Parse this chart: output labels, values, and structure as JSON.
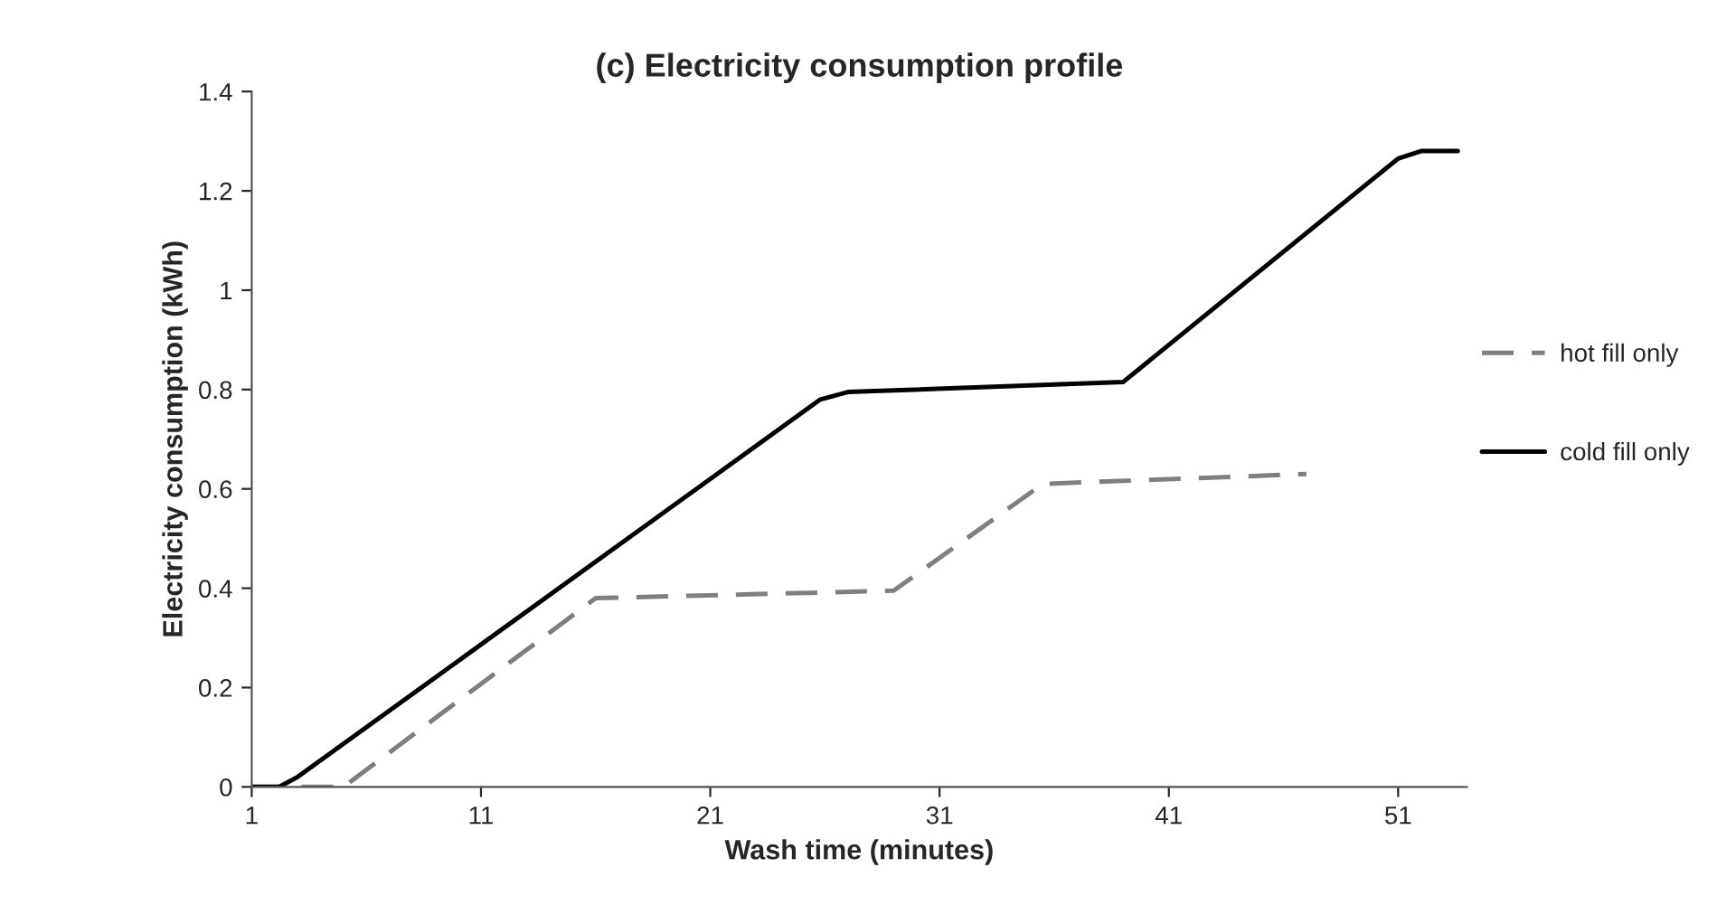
{
  "chart_data": {
    "type": "line",
    "title": "(c) Electricity consumption profile",
    "xlabel": "Wash time (minutes)",
    "ylabel": "Electricity consumption (kWh)",
    "xlim": [
      1,
      54
    ],
    "xticks": [
      1,
      11,
      21,
      31,
      41,
      51
    ],
    "ylim": [
      0,
      1.4
    ],
    "yticks": [
      0,
      0.2,
      0.4,
      0.6,
      0.8,
      1,
      1.2,
      1.4
    ],
    "grid": false,
    "legend": "right",
    "marker": "none",
    "series": [
      {
        "name": "hot fill only",
        "color": "#7f7f7f",
        "line_style": "dashed",
        "x": [
          1,
          5,
          16,
          29,
          35.5,
          47
        ],
        "values": [
          0,
          0,
          0.38,
          0.395,
          0.61,
          0.63
        ]
      },
      {
        "name": "cold fill only",
        "color": "#000000",
        "line_style": "solid",
        "x": [
          1,
          2.2,
          3,
          25.8,
          27,
          39,
          51,
          52,
          53.6
        ],
        "values": [
          0,
          0,
          0.02,
          0.78,
          0.795,
          0.815,
          1.265,
          1.28,
          1.28
        ]
      }
    ]
  }
}
